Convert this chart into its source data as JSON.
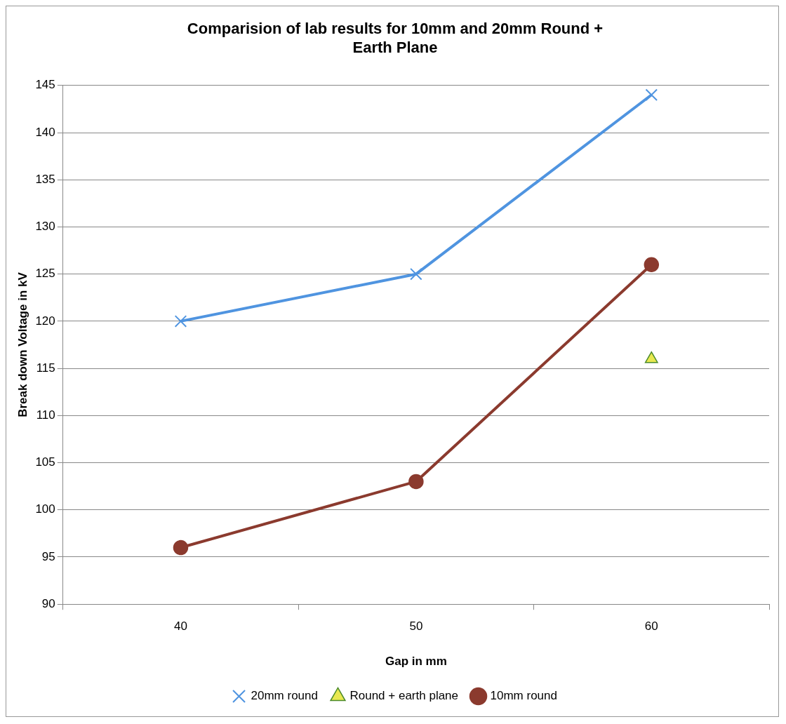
{
  "chart_data": {
    "type": "line",
    "title": "Comparision of lab results for 10mm and 20mm Round + Earth Plane",
    "xlabel": "Gap in mm",
    "ylabel": "Break down Voltage in kV",
    "categories": [
      "40",
      "50",
      "60"
    ],
    "series": [
      {
        "name": "20mm round",
        "color": "#4f94e0",
        "marker": "cross",
        "values": [
          120,
          125,
          144
        ]
      },
      {
        "name": "Round + earth plane",
        "color": "#e8e850",
        "marker": "triangle",
        "values": [
          null,
          null,
          116
        ]
      },
      {
        "name": "10mm round",
        "color": "#8b3a2e",
        "marker": "circle",
        "values": [
          96,
          103,
          126
        ]
      }
    ],
    "ylim": [
      90,
      145
    ],
    "yticks": [
      90,
      95,
      100,
      105,
      110,
      115,
      120,
      125,
      130,
      135,
      140,
      145
    ],
    "grid": "y",
    "legend": "bottom"
  }
}
